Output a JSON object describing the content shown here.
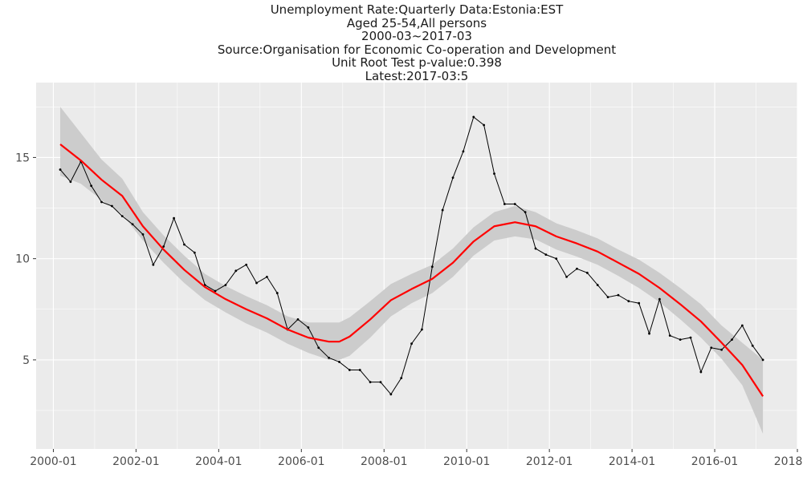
{
  "chart_data": {
    "type": "line",
    "title_lines": [
      "Unemployment Rate:Quarterly Data:Estonia:EST",
      "Aged 25-54,All persons",
      "2000-03~2017-03",
      "Source:Organisation for Economic Co-operation and Development",
      "Unit Root Test p-value:0.398",
      "Latest:2017-03:5"
    ],
    "xlabel": "",
    "ylabel": "",
    "x_tick_labels": [
      "2000-01",
      "2002-01",
      "2004-01",
      "2006-01",
      "2008-01",
      "2010-01",
      "2012-01",
      "2014-01",
      "2016-01",
      "2018-01"
    ],
    "y_tick_labels": [
      "5",
      "10",
      "15"
    ],
    "x_range": [
      "1999-08",
      "2018-01"
    ],
    "ylim": [
      0.6,
      18.7
    ],
    "grid": true,
    "legend": "none",
    "series": [
      {
        "type": "line",
        "color": "#000000",
        "markers": true,
        "points": [
          [
            "2000-03",
            14.4
          ],
          [
            "2000-06",
            13.8
          ],
          [
            "2000-09",
            14.8
          ],
          [
            "2000-12",
            13.6
          ],
          [
            "2001-03",
            12.8
          ],
          [
            "2001-06",
            12.6
          ],
          [
            "2001-09",
            12.1
          ],
          [
            "2001-12",
            11.7
          ],
          [
            "2002-03",
            11.2
          ],
          [
            "2002-06",
            9.7
          ],
          [
            "2002-09",
            10.6
          ],
          [
            "2002-12",
            12.0
          ],
          [
            "2003-03",
            10.7
          ],
          [
            "2003-06",
            10.3
          ],
          [
            "2003-09",
            8.7
          ],
          [
            "2003-12",
            8.4
          ],
          [
            "2004-03",
            8.7
          ],
          [
            "2004-06",
            9.4
          ],
          [
            "2004-09",
            9.7
          ],
          [
            "2004-12",
            8.8
          ],
          [
            "2005-03",
            9.1
          ],
          [
            "2005-06",
            8.3
          ],
          [
            "2005-09",
            6.5
          ],
          [
            "2005-12",
            7.0
          ],
          [
            "2006-03",
            6.6
          ],
          [
            "2006-06",
            5.6
          ],
          [
            "2006-09",
            5.1
          ],
          [
            "2006-12",
            4.9
          ],
          [
            "2007-03",
            4.5
          ],
          [
            "2007-06",
            4.5
          ],
          [
            "2007-09",
            3.9
          ],
          [
            "2007-12",
            3.9
          ],
          [
            "2008-03",
            3.3
          ],
          [
            "2008-06",
            4.1
          ],
          [
            "2008-09",
            5.8
          ],
          [
            "2008-12",
            6.5
          ],
          [
            "2009-03",
            9.6
          ],
          [
            "2009-06",
            12.4
          ],
          [
            "2009-09",
            14.0
          ],
          [
            "2009-12",
            15.3
          ],
          [
            "2010-03",
            17.0
          ],
          [
            "2010-06",
            16.6
          ],
          [
            "2010-09",
            14.2
          ],
          [
            "2010-12",
            12.7
          ],
          [
            "2011-03",
            12.7
          ],
          [
            "2011-06",
            12.3
          ],
          [
            "2011-09",
            10.5
          ],
          [
            "2011-12",
            10.2
          ],
          [
            "2012-03",
            10.0
          ],
          [
            "2012-06",
            9.1
          ],
          [
            "2012-09",
            9.5
          ],
          [
            "2012-12",
            9.3
          ],
          [
            "2013-03",
            8.7
          ],
          [
            "2013-06",
            8.1
          ],
          [
            "2013-09",
            8.2
          ],
          [
            "2013-12",
            7.9
          ],
          [
            "2014-03",
            7.8
          ],
          [
            "2014-06",
            6.3
          ],
          [
            "2014-09",
            8.0
          ],
          [
            "2014-12",
            6.2
          ],
          [
            "2015-03",
            6.0
          ],
          [
            "2015-06",
            6.1
          ],
          [
            "2015-09",
            4.4
          ],
          [
            "2015-12",
            5.6
          ],
          [
            "2016-03",
            5.5
          ],
          [
            "2016-06",
            6.0
          ],
          [
            "2016-09",
            6.7
          ],
          [
            "2016-12",
            5.7
          ],
          [
            "2017-03",
            5.0
          ]
        ]
      },
      {
        "type": "smooth",
        "color": "#ff0000",
        "band_color": "#cccccc",
        "points": [
          [
            "2000-03",
            15.65,
            14.1,
            17.5
          ],
          [
            "2000-09",
            14.85,
            13.7,
            16.2
          ],
          [
            "2001-03",
            13.9,
            12.9,
            14.9
          ],
          [
            "2001-09",
            13.1,
            12.2,
            13.95
          ],
          [
            "2002-03",
            11.6,
            10.9,
            12.3
          ],
          [
            "2002-09",
            10.45,
            9.8,
            11.15
          ],
          [
            "2003-03",
            9.45,
            8.8,
            10.15
          ],
          [
            "2003-09",
            8.6,
            7.95,
            9.25
          ],
          [
            "2004-03",
            8.0,
            7.35,
            8.65
          ],
          [
            "2004-09",
            7.5,
            6.8,
            8.15
          ],
          [
            "2005-03",
            7.05,
            6.35,
            7.7
          ],
          [
            "2005-09",
            6.5,
            5.8,
            7.15
          ],
          [
            "2006-03",
            6.1,
            5.35,
            6.85
          ],
          [
            "2006-09",
            5.9,
            5.0,
            6.85
          ],
          [
            "2006-12",
            5.9,
            5.0,
            6.85
          ],
          [
            "2007-03",
            6.15,
            5.2,
            7.1
          ],
          [
            "2007-09",
            7.0,
            6.1,
            7.9
          ],
          [
            "2008-03",
            7.95,
            7.15,
            8.75
          ],
          [
            "2008-09",
            8.5,
            7.8,
            9.25
          ],
          [
            "2009-03",
            9.0,
            8.3,
            9.7
          ],
          [
            "2009-09",
            9.8,
            9.1,
            10.5
          ],
          [
            "2010-03",
            10.85,
            10.15,
            11.55
          ],
          [
            "2010-09",
            11.6,
            10.9,
            12.3
          ],
          [
            "2011-03",
            11.8,
            11.1,
            12.6
          ],
          [
            "2011-09",
            11.6,
            10.95,
            12.3
          ],
          [
            "2012-03",
            11.1,
            10.45,
            11.75
          ],
          [
            "2012-09",
            10.75,
            10.1,
            11.4
          ],
          [
            "2013-03",
            10.35,
            9.7,
            11.0
          ],
          [
            "2013-09",
            9.8,
            9.15,
            10.45
          ],
          [
            "2014-03",
            9.25,
            8.55,
            9.95
          ],
          [
            "2014-09",
            8.55,
            7.85,
            9.3
          ],
          [
            "2015-03",
            7.75,
            7.0,
            8.55
          ],
          [
            "2015-09",
            6.9,
            6.1,
            7.75
          ],
          [
            "2016-03",
            5.85,
            5.05,
            6.7
          ],
          [
            "2016-09",
            4.75,
            3.75,
            5.85
          ],
          [
            "2017-03",
            3.2,
            1.35,
            5.0
          ]
        ]
      }
    ]
  }
}
